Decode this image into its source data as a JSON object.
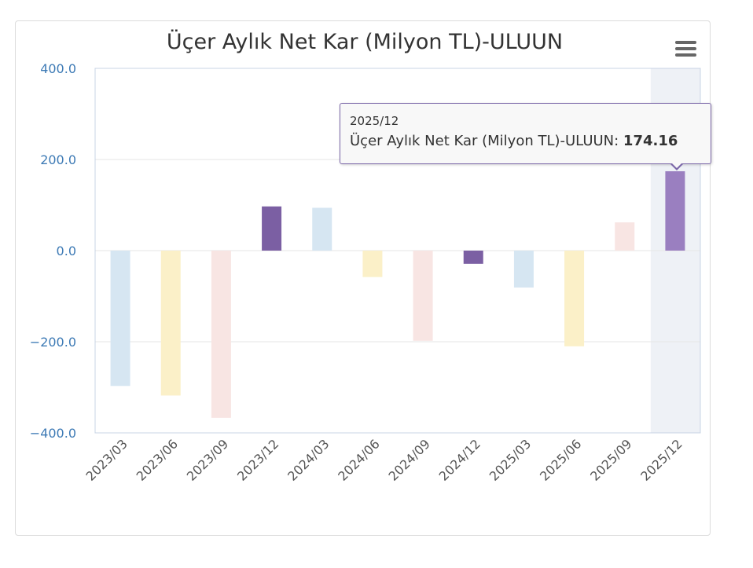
{
  "chart_data": {
    "type": "bar",
    "title": "Üçer Aylık Net Kar (Milyon TL)-ULUUN",
    "xlabel": "",
    "ylabel": "",
    "ylim": [
      -400,
      400
    ],
    "yticks": [
      "400.0",
      "200.0",
      "0.0",
      "−200.0",
      "−400.0"
    ],
    "ytick_values": [
      400,
      200,
      0,
      -200,
      -400
    ],
    "categories": [
      "2023/03",
      "2023/06",
      "2023/09",
      "2023/12",
      "2024/03",
      "2024/06",
      "2024/09",
      "2024/12",
      "2025/03",
      "2025/06",
      "2025/09",
      "2025/12"
    ],
    "values": [
      -297,
      -318,
      -367,
      97,
      94,
      -58,
      -198,
      -29,
      -81,
      -210,
      62,
      174.16
    ],
    "bar_colors": [
      "#d6e6f2",
      "#fbf0c8",
      "#f8e5e3",
      "#7b5fa3",
      "#d6e6f2",
      "#fbf0c8",
      "#f8e5e3",
      "#7b5fa3",
      "#d6e6f2",
      "#fbf0c8",
      "#f8e5e3",
      "#9a7fc0"
    ],
    "highlighted_index": 11,
    "grid": true,
    "legend": "none"
  },
  "tooltip": {
    "header": "2025/12",
    "series_label": "Üçer Aylık Net Kar (Milyon TL)-ULUUN: ",
    "value": "174.16"
  },
  "menu": {
    "icon": "hamburger-menu-icon"
  }
}
